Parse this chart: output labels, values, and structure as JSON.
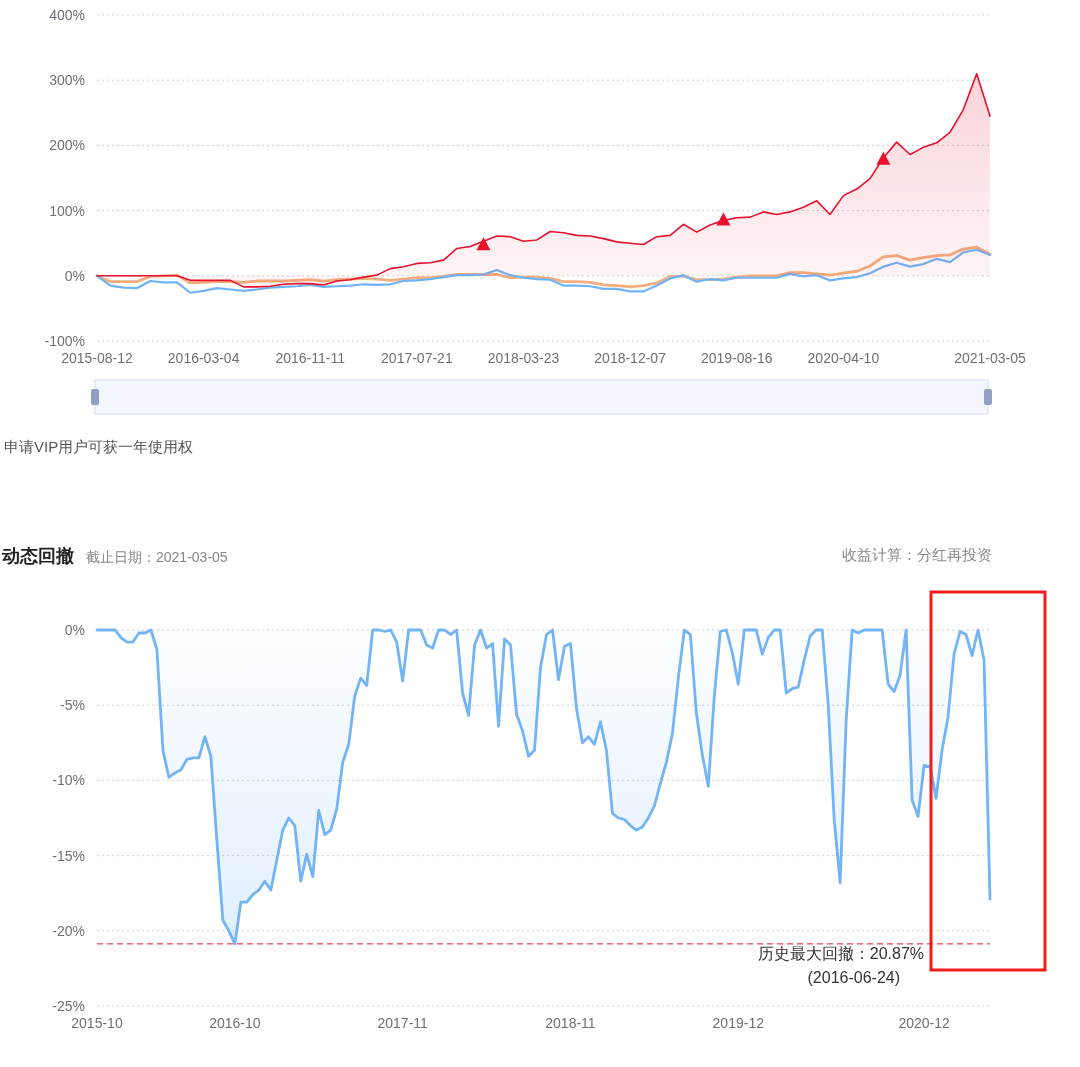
{
  "chart_data": [
    {
      "type": "line",
      "categories": [
        "2015-08-12",
        null,
        null,
        null,
        null,
        null,
        null,
        null,
        "2016-03-04",
        null,
        null,
        null,
        null,
        null,
        null,
        null,
        "2016-11-11",
        null,
        null,
        null,
        null,
        null,
        null,
        null,
        "2017-07-21",
        null,
        null,
        null,
        null,
        null,
        null,
        null,
        "2018-03-23",
        null,
        null,
        null,
        null,
        null,
        null,
        null,
        "2018-12-07",
        null,
        null,
        null,
        null,
        null,
        null,
        null,
        "2019-08-16",
        null,
        null,
        null,
        null,
        null,
        null,
        null,
        "2020-04-10",
        null,
        null,
        null,
        null,
        null,
        null,
        null,
        null,
        null,
        null,
        "2021-03-05"
      ],
      "series": [
        {
          "color": "#f4ad7e",
          "values": [
            0,
            -9,
            -9,
            -9,
            -1,
            0,
            1,
            -11,
            -10,
            -9,
            -9,
            -10,
            -8,
            -8,
            -8,
            -7,
            -6,
            -8,
            -6,
            -5,
            -4,
            -5,
            -7,
            -5,
            -3,
            -3,
            -1,
            2,
            2,
            2,
            2,
            -3,
            -2,
            -2,
            -4,
            -9,
            -9,
            -10,
            -14,
            -15,
            -17,
            -15,
            -11,
            -1,
            -1,
            -6,
            -6,
            -5,
            -2,
            0,
            0,
            0,
            5,
            5,
            3,
            1,
            4,
            7,
            15,
            29,
            31,
            24,
            28,
            31,
            32,
            41,
            44,
            33
          ]
        },
        {
          "color": "#6fb3f7",
          "values": [
            0,
            -15,
            -18,
            -19,
            -8,
            -10,
            -10,
            -26,
            -23,
            -19,
            -21,
            -23,
            -21,
            -18,
            -17,
            -16,
            -14,
            -17,
            -16,
            -15,
            -13,
            -14,
            -13,
            -8,
            -7,
            -5,
            -2,
            1,
            1,
            2,
            9,
            1,
            -3,
            -5,
            -6,
            -15,
            -15,
            -16,
            -20,
            -20,
            -24,
            -24,
            -15,
            -4,
            1,
            -9,
            -5,
            -7,
            -3,
            -3,
            -3,
            -3,
            3,
            -1,
            1,
            -7,
            -4,
            -2,
            4,
            14,
            20,
            14,
            18,
            26,
            21,
            36,
            40,
            32
          ]
        },
        {
          "type": "area",
          "color": "#e8112d",
          "values": [
            0,
            0,
            0,
            0,
            0,
            0,
            0,
            -7,
            -7,
            -7,
            -7,
            -17,
            -17,
            -16,
            -13,
            -12,
            -12,
            -14,
            -8,
            -6,
            -2,
            1,
            11,
            14,
            19,
            20,
            24,
            42,
            45,
            53,
            61,
            60,
            53,
            55,
            68,
            66,
            62,
            61,
            57,
            52,
            50,
            48,
            60,
            62,
            79,
            67,
            78,
            85,
            89,
            90,
            98,
            94,
            98,
            105,
            115,
            94,
            123,
            133,
            149,
            181,
            205,
            186,
            197,
            204,
            220,
            255,
            310,
            245
          ]
        },
        {
          "type": "scatter",
          "marker": "triangle",
          "color": "#e8112d",
          "values": [
            null,
            null,
            null,
            null,
            null,
            null,
            null,
            null,
            null,
            null,
            null,
            null,
            null,
            null,
            null,
            null,
            null,
            null,
            null,
            null,
            null,
            null,
            null,
            null,
            null,
            null,
            null,
            null,
            null,
            47,
            null,
            null,
            null,
            null,
            null,
            null,
            null,
            null,
            null,
            null,
            null,
            null,
            null,
            null,
            null,
            null,
            null,
            85,
            null,
            null,
            null,
            null,
            null,
            null,
            null,
            null,
            null,
            null,
            null,
            178,
            null,
            null,
            null,
            null,
            null,
            null,
            null,
            null
          ]
        }
      ],
      "ylim": [
        -100,
        400
      ],
      "yticks": [
        {
          "value": -100,
          "label": "-100%"
        },
        {
          "value": 0,
          "label": "0%"
        },
        {
          "value": 100,
          "label": "100%"
        },
        {
          "value": 200,
          "label": "200%"
        },
        {
          "value": 300,
          "label": "300%"
        },
        {
          "value": 400,
          "label": "400%"
        }
      ],
      "grid": "y",
      "annotations": [
        "申请VIP用户可获一年使用权"
      ]
    },
    {
      "type": "area",
      "title": "动态回撤",
      "subtitle": "截止日期：2021-03-05",
      "categories": [
        "2015-10",
        null,
        null,
        null,
        null,
        null,
        null,
        null,
        null,
        null,
        null,
        null,
        null,
        null,
        null,
        null,
        null,
        null,
        null,
        null,
        null,
        null,
        null,
        "2016-10",
        null,
        null,
        null,
        null,
        null,
        null,
        null,
        null,
        null,
        null,
        null,
        null,
        null,
        null,
        null,
        null,
        null,
        null,
        null,
        null,
        null,
        null,
        null,
        null,
        null,
        null,
        null,
        "2017-11",
        null,
        null,
        null,
        null,
        null,
        null,
        null,
        null,
        null,
        null,
        null,
        null,
        null,
        null,
        null,
        null,
        null,
        null,
        null,
        null,
        null,
        null,
        null,
        null,
        null,
        null,
        null,
        "2018-11",
        null,
        null,
        null,
        null,
        null,
        null,
        null,
        null,
        null,
        null,
        null,
        null,
        null,
        null,
        null,
        null,
        null,
        null,
        null,
        null,
        null,
        null,
        null,
        null,
        null,
        null,
        null,
        "2019-12",
        null,
        null,
        null,
        null,
        null,
        null,
        null,
        null,
        null,
        null,
        null,
        null,
        null,
        null,
        null,
        null,
        null,
        null,
        null,
        null,
        null,
        null,
        null,
        null,
        null,
        null,
        null,
        null,
        null,
        null,
        "2020-12",
        null,
        null,
        null,
        null,
        null,
        null,
        null,
        null,
        null,
        null,
        null
      ],
      "color": "#73b4f7",
      "values": [
        0,
        0,
        0,
        0,
        -0.5,
        -0.8,
        -0.8,
        -0.2,
        -0.2,
        0,
        -1.3,
        -8.0,
        -9.8,
        -9.5,
        -9.3,
        -8.6,
        -8.5,
        -8.5,
        -7.1,
        -8.4,
        -14.0,
        -19.3,
        -20.0,
        -20.87,
        -18.1,
        -18.1,
        -17.6,
        -17.3,
        -16.7,
        -17.3,
        -15.3,
        -13.3,
        -12.5,
        -13.0,
        -16.7,
        -14.9,
        -16.4,
        -12.0,
        -13.6,
        -13.3,
        -11.9,
        -8.8,
        -7.6,
        -4.4,
        -3.2,
        -3.7,
        0,
        0,
        -0.1,
        0,
        -0.8,
        -3.4,
        0,
        0,
        0,
        -1.0,
        -1.2,
        0,
        0,
        -0.3,
        0,
        -4.2,
        -5.7,
        -1.0,
        0,
        -1.2,
        -0.9,
        -6.4,
        -0.6,
        -1.0,
        -5.6,
        -6.7,
        -8.4,
        -8.0,
        -2.5,
        -0.3,
        0,
        -3.3,
        -1.1,
        -0.9,
        -5.2,
        -7.5,
        -7.1,
        -7.6,
        -6.1,
        -8.0,
        -12.2,
        -12.5,
        -12.6,
        -13.0,
        -13.3,
        -13.1,
        -12.5,
        -11.7,
        -10.2,
        -8.8,
        -6.9,
        -3.2,
        0,
        -0.3,
        -5.5,
        -8.3,
        -10.4,
        -4.4,
        -0.1,
        0,
        -1.5,
        -3.6,
        0,
        0,
        0,
        -1.6,
        -0.5,
        0,
        0,
        -4.2,
        -3.9,
        -3.8,
        -2.0,
        -0.4,
        0,
        0,
        -4.9,
        -12.6,
        -16.8,
        -6.0,
        0,
        -0.2,
        0,
        0,
        0,
        0,
        -3.6,
        -4.1,
        -3.0,
        0,
        -11.3,
        -12.4,
        -9.0,
        -9.1,
        -11.2,
        -8.0,
        -5.8,
        -1.6,
        -0.1,
        -0.3,
        -1.7,
        0,
        -2.0,
        -17.9
      ],
      "ylim": [
        -25,
        0
      ],
      "yticks": [
        {
          "value": -25,
          "label": "-25%"
        },
        {
          "value": -20,
          "label": "-20%"
        },
        {
          "value": -15,
          "label": "-15%"
        },
        {
          "value": -10,
          "label": "-10%"
        },
        {
          "value": -5,
          "label": "-5%"
        },
        {
          "value": 0,
          "label": "0%"
        }
      ],
      "grid": "y",
      "ref_lines": [
        {
          "axis": "y",
          "value": -20.87,
          "label": "历史最大回撤：20.87%\n(2016-06-24)",
          "color": "#e8112d",
          "line_style": "dashed"
        }
      ],
      "annotations": [
        "收益计算：分红再投资"
      ]
    }
  ]
}
